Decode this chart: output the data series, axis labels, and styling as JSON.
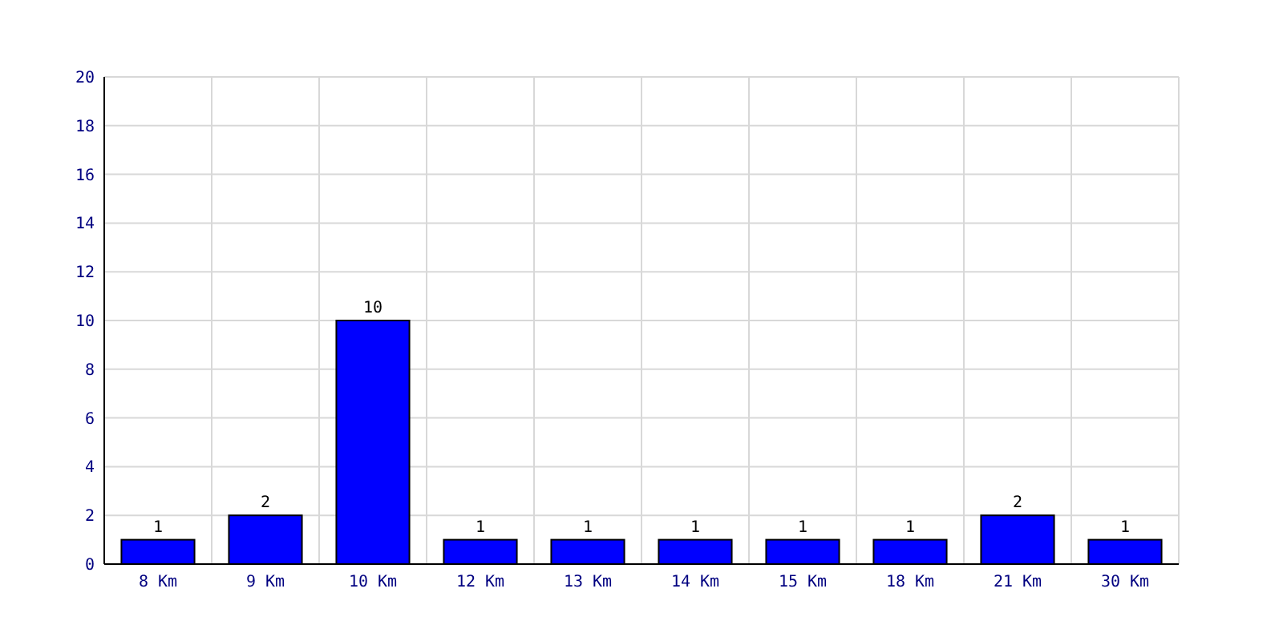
{
  "chart_data": {
    "type": "bar",
    "categories": [
      "8 Km",
      "9 Km",
      "10 Km",
      "12 Km",
      "13 Km",
      "14 Km",
      "15 Km",
      "18 Km",
      "21 Km",
      "30 Km"
    ],
    "values": [
      1,
      2,
      10,
      1,
      1,
      1,
      1,
      1,
      2,
      1
    ],
    "color": "#0000ff",
    "ylim": [
      0,
      20
    ],
    "yticks": [
      0,
      2,
      4,
      6,
      8,
      10,
      12,
      14,
      16,
      18,
      20
    ],
    "grid": true,
    "data_labels": true
  }
}
